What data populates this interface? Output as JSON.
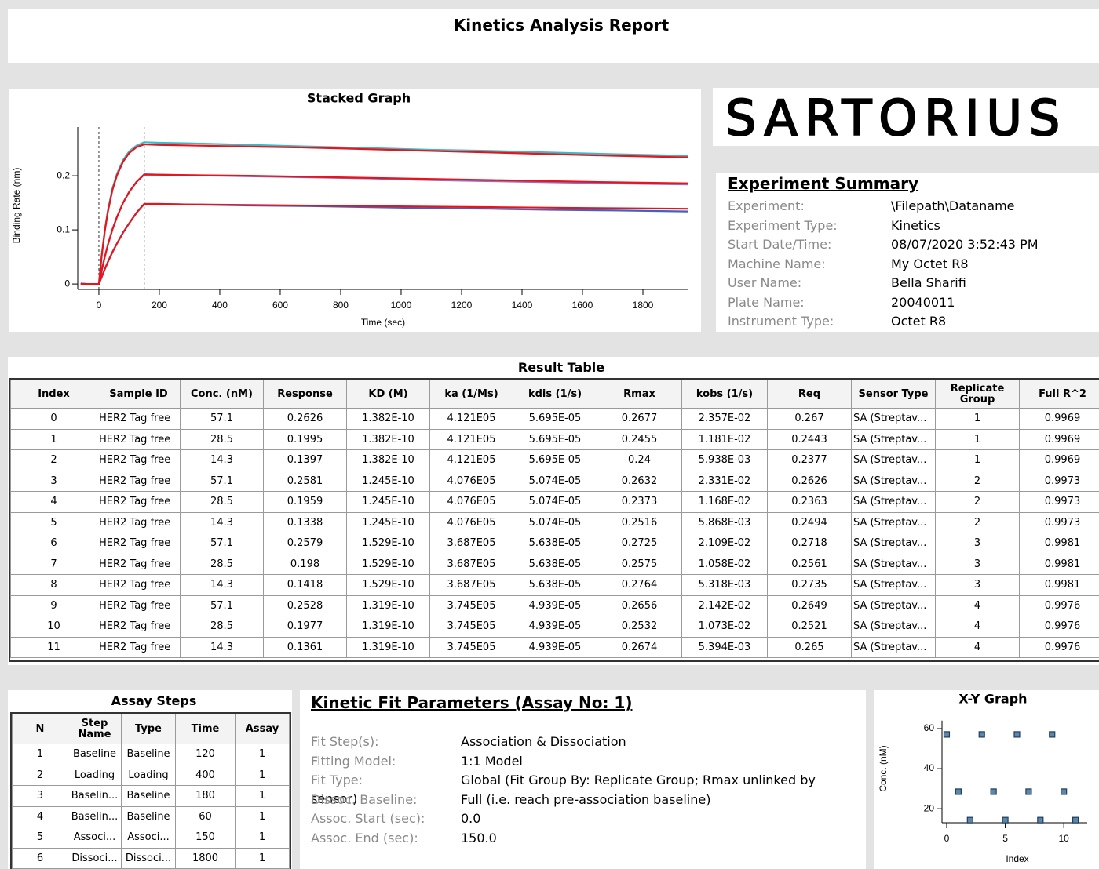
{
  "header": {
    "title": "Kinetics Analysis Report"
  },
  "logo": "SARTORIUS",
  "chart_data": [
    {
      "type": "line",
      "title": "Stacked Graph",
      "x_label": "Time (sec)",
      "y_label": "Binding Rate (nm)",
      "x": [
        -60,
        -20,
        0,
        10,
        20,
        30,
        45,
        60,
        80,
        100,
        125,
        150,
        200,
        300,
        500,
        700,
        900,
        1100,
        1300,
        1500,
        1700,
        1950
      ],
      "series": [
        {
          "color": "#3fb8c6",
          "values": [
            0.001,
            -0.001,
            0,
            0.057,
            0.102,
            0.137,
            0.177,
            0.204,
            0.229,
            0.245,
            0.256,
            0.262,
            0.261,
            0.26,
            0.257,
            0.254,
            0.251,
            0.248,
            0.246,
            0.243,
            0.24,
            0.237
          ]
        },
        {
          "color": "#8f72c9",
          "values": [
            0.001,
            -0.001,
            0,
            0.027,
            0.051,
            0.073,
            0.101,
            0.124,
            0.15,
            0.17,
            0.189,
            0.203,
            0.202,
            0.201,
            0.199,
            0.197,
            0.195,
            0.192,
            0.19,
            0.188,
            0.186,
            0.184
          ]
        },
        {
          "color": "#3e63c4",
          "values": [
            0.001,
            -0.001,
            0,
            0.014,
            0.028,
            0.041,
            0.059,
            0.075,
            0.095,
            0.112,
            0.132,
            0.148,
            0.148,
            0.147,
            0.145,
            0.144,
            0.142,
            0.14,
            0.139,
            0.137,
            0.136,
            0.134
          ]
        },
        {
          "color": "#e8141c",
          "values": [
            0,
            0,
            0,
            0.055,
            0.099,
            0.134,
            0.174,
            0.201,
            0.226,
            0.242,
            0.253,
            0.258,
            0.257,
            0.256,
            0.254,
            0.252,
            0.249,
            0.246,
            0.243,
            0.24,
            0.237,
            0.234
          ]
        },
        {
          "color": "#e8141c",
          "values": [
            0,
            0,
            0,
            0.027,
            0.051,
            0.073,
            0.101,
            0.124,
            0.15,
            0.17,
            0.189,
            0.202,
            0.202,
            0.201,
            0.2,
            0.198,
            0.196,
            0.194,
            0.192,
            0.19,
            0.188,
            0.186
          ]
        },
        {
          "color": "#e8141c",
          "values": [
            0,
            0,
            0,
            0.014,
            0.028,
            0.041,
            0.059,
            0.075,
            0.095,
            0.112,
            0.132,
            0.148,
            0.148,
            0.147,
            0.146,
            0.145,
            0.144,
            0.143,
            0.142,
            0.141,
            0.14,
            0.139
          ]
        }
      ],
      "xlim": [
        -70,
        1950
      ],
      "ylim": [
        -0.01,
        0.29
      ],
      "xticks": [
        0,
        200,
        400,
        600,
        800,
        1000,
        1200,
        1400,
        1600,
        1800
      ],
      "yticks": [
        0,
        0.1,
        0.2
      ],
      "vlines": [
        0,
        150
      ]
    },
    {
      "type": "scatter",
      "title": "X-Y Graph",
      "x_label": "Index",
      "y_label": "Conc. (nM)",
      "x": [
        0,
        1,
        2,
        3,
        4,
        5,
        6,
        7,
        8,
        9,
        10,
        11
      ],
      "values": [
        57.1,
        28.5,
        14.3,
        57.1,
        28.5,
        14.3,
        57.1,
        28.5,
        14.3,
        57.1,
        28.5,
        14.3
      ],
      "color": "#5f86a8",
      "xlim": [
        -0.4,
        12
      ],
      "ylim": [
        13,
        64
      ],
      "xticks": [
        0,
        5,
        10
      ],
      "yticks": [
        20,
        40,
        60
      ]
    }
  ],
  "experiment_summary": {
    "title": "Experiment Summary",
    "items": [
      [
        "Experiment:",
        "\\Filepath\\Dataname"
      ],
      [
        "Experiment Type:",
        "Kinetics"
      ],
      [
        "Start Date/Time:",
        "08/07/2020 3:52:43 PM"
      ],
      [
        "Machine Name:",
        "My Octet R8"
      ],
      [
        "User Name:",
        "Bella Sharifi"
      ],
      [
        "Plate Name:",
        "20040011"
      ],
      [
        "Instrument Type:",
        "Octet R8"
      ]
    ]
  },
  "result_table": {
    "title": "Result Table",
    "columns": [
      "Index",
      "Sample ID",
      "Conc. (nM)",
      "Response",
      "KD (M)",
      "ka (1/Ms)",
      "kdis (1/s)",
      "Rmax",
      "kobs (1/s)",
      "Req",
      "Sensor Type",
      "Replicate Group",
      "Full R^2"
    ],
    "rows": [
      [
        "0",
        "HER2 Tag free",
        "57.1",
        "0.2626",
        "1.382E-10",
        "4.121E05",
        "5.695E-05",
        "0.2677",
        "2.357E-02",
        "0.267",
        "SA (Streptav...",
        "1",
        "0.9969"
      ],
      [
        "1",
        "HER2 Tag free",
        "28.5",
        "0.1995",
        "1.382E-10",
        "4.121E05",
        "5.695E-05",
        "0.2455",
        "1.181E-02",
        "0.2443",
        "SA (Streptav...",
        "1",
        "0.9969"
      ],
      [
        "2",
        "HER2 Tag free",
        "14.3",
        "0.1397",
        "1.382E-10",
        "4.121E05",
        "5.695E-05",
        "0.24",
        "5.938E-03",
        "0.2377",
        "SA (Streptav...",
        "1",
        "0.9969"
      ],
      [
        "3",
        "HER2 Tag free",
        "57.1",
        "0.2581",
        "1.245E-10",
        "4.076E05",
        "5.074E-05",
        "0.2632",
        "2.331E-02",
        "0.2626",
        "SA (Streptav...",
        "2",
        "0.9973"
      ],
      [
        "4",
        "HER2 Tag free",
        "28.5",
        "0.1959",
        "1.245E-10",
        "4.076E05",
        "5.074E-05",
        "0.2373",
        "1.168E-02",
        "0.2363",
        "SA (Streptav...",
        "2",
        "0.9973"
      ],
      [
        "5",
        "HER2 Tag free",
        "14.3",
        "0.1338",
        "1.245E-10",
        "4.076E05",
        "5.074E-05",
        "0.2516",
        "5.868E-03",
        "0.2494",
        "SA (Streptav...",
        "2",
        "0.9973"
      ],
      [
        "6",
        "HER2 Tag free",
        "57.1",
        "0.2579",
        "1.529E-10",
        "3.687E05",
        "5.638E-05",
        "0.2725",
        "2.109E-02",
        "0.2718",
        "SA (Streptav...",
        "3",
        "0.9981"
      ],
      [
        "7",
        "HER2 Tag free",
        "28.5",
        "0.198",
        "1.529E-10",
        "3.687E05",
        "5.638E-05",
        "0.2575",
        "1.058E-02",
        "0.2561",
        "SA (Streptav...",
        "3",
        "0.9981"
      ],
      [
        "8",
        "HER2 Tag free",
        "14.3",
        "0.1418",
        "1.529E-10",
        "3.687E05",
        "5.638E-05",
        "0.2764",
        "5.318E-03",
        "0.2735",
        "SA (Streptav...",
        "3",
        "0.9981"
      ],
      [
        "9",
        "HER2 Tag free",
        "57.1",
        "0.2528",
        "1.319E-10",
        "3.745E05",
        "4.939E-05",
        "0.2656",
        "2.142E-02",
        "0.2649",
        "SA (Streptav...",
        "4",
        "0.9976"
      ],
      [
        "10",
        "HER2 Tag free",
        "28.5",
        "0.1977",
        "1.319E-10",
        "3.745E05",
        "4.939E-05",
        "0.2532",
        "1.073E-02",
        "0.2521",
        "SA (Streptav...",
        "4",
        "0.9976"
      ],
      [
        "11",
        "HER2 Tag free",
        "14.3",
        "0.1361",
        "1.319E-10",
        "3.745E05",
        "4.939E-05",
        "0.2674",
        "5.394E-03",
        "0.265",
        "SA (Streptav...",
        "4",
        "0.9976"
      ]
    ]
  },
  "assay_steps": {
    "title": "Assay Steps",
    "columns": [
      "N",
      "Step Name",
      "Type",
      "Time",
      "Assay"
    ],
    "rows": [
      [
        "1",
        "Baseline",
        "Baseline",
        "120",
        "1"
      ],
      [
        "2",
        "Loading",
        "Loading",
        "400",
        "1"
      ],
      [
        "3",
        "Baselin...",
        "Baseline",
        "180",
        "1"
      ],
      [
        "4",
        "Baselin...",
        "Baseline",
        "60",
        "1"
      ],
      [
        "5",
        "Associ...",
        "Associ...",
        "150",
        "1"
      ],
      [
        "6",
        "Dissoci...",
        "Dissoci...",
        "1800",
        "1"
      ]
    ]
  },
  "kinetic_fit": {
    "title": "Kinetic Fit Parameters (Assay No: 1)",
    "items": [
      [
        "Fit Step(s):",
        "Association & Dissociation"
      ],
      [
        "Fitting Model:",
        "1:1 Model"
      ],
      [
        "Fit Type:",
        "Global (Fit Group By: Replicate Group; Rmax unlinked by sensor)"
      ],
      [
        "Dissoc. Baseline:",
        "Full (i.e. reach pre-association baseline)"
      ],
      [
        "Assoc. Start (sec):",
        "0.0"
      ],
      [
        "Assoc. End (sec):",
        "150.0"
      ]
    ]
  }
}
